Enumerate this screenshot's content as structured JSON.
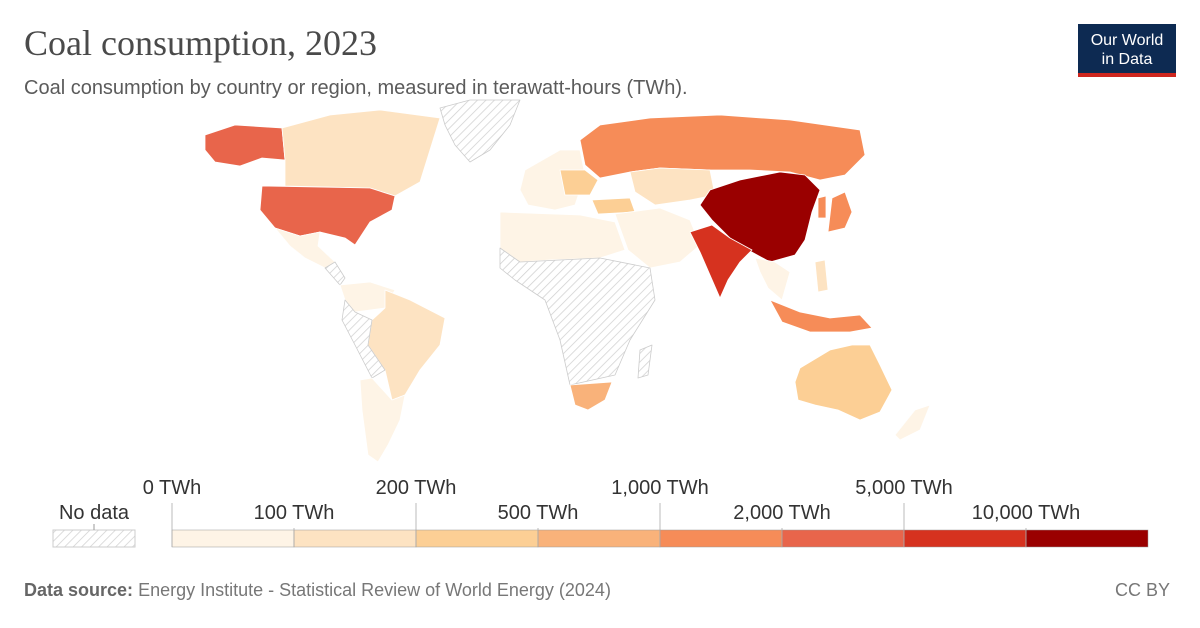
{
  "header": {
    "title": "Coal consumption, 2023",
    "subtitle": "Coal consumption by country or region, measured in terawatt-hours (TWh).",
    "logo_line1": "Our World",
    "logo_line2": "in Data"
  },
  "legend": {
    "no_data_label": "No data",
    "upper_labels": [
      "0 TWh",
      "200 TWh",
      "1,000 TWh",
      "5,000 TWh"
    ],
    "lower_labels": [
      "100 TWh",
      "500 TWh",
      "2,000 TWh",
      "10,000 TWh"
    ],
    "bins": [
      "0–100 TWh",
      "100–200 TWh",
      "200–500 TWh",
      "500–1,000 TWh",
      "1,000–2,000 TWh",
      "2,000–5,000 TWh",
      "5,000–10,000 TWh",
      ">10,000 TWh"
    ],
    "colors": [
      "#fef4e6",
      "#fde3c2",
      "#fccf95",
      "#f9b27a",
      "#f68c58",
      "#e8654b",
      "#d6321f",
      "#9a0000"
    ],
    "no_data_color": "#e6e6e6"
  },
  "footer": {
    "source_label": "Data source:",
    "source_text": "Energy Institute - Statistical Review of World Energy (2024)",
    "license": "CC BY"
  }
}
